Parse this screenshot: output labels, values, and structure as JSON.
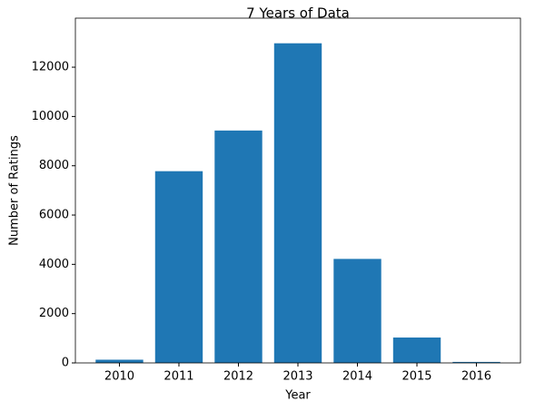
{
  "chart_data": {
    "type": "bar",
    "title": "7 Years of Data",
    "xlabel": "Year",
    "ylabel": "Number of Ratings",
    "x": [
      2010,
      2011,
      2012,
      2013,
      2014,
      2015,
      2016
    ],
    "values": [
      130,
      7780,
      9430,
      12970,
      4220,
      1030,
      40
    ],
    "color": "#1f77b4",
    "xlim": [
      2009.26,
      2016.74
    ],
    "xticks": [
      2010,
      2011,
      2012,
      2013,
      2014,
      2015,
      2016
    ],
    "ylim": [
      0,
      13990
    ],
    "yticks": [
      0,
      2000,
      4000,
      6000,
      8000,
      10000,
      12000
    ],
    "grid": false
  }
}
